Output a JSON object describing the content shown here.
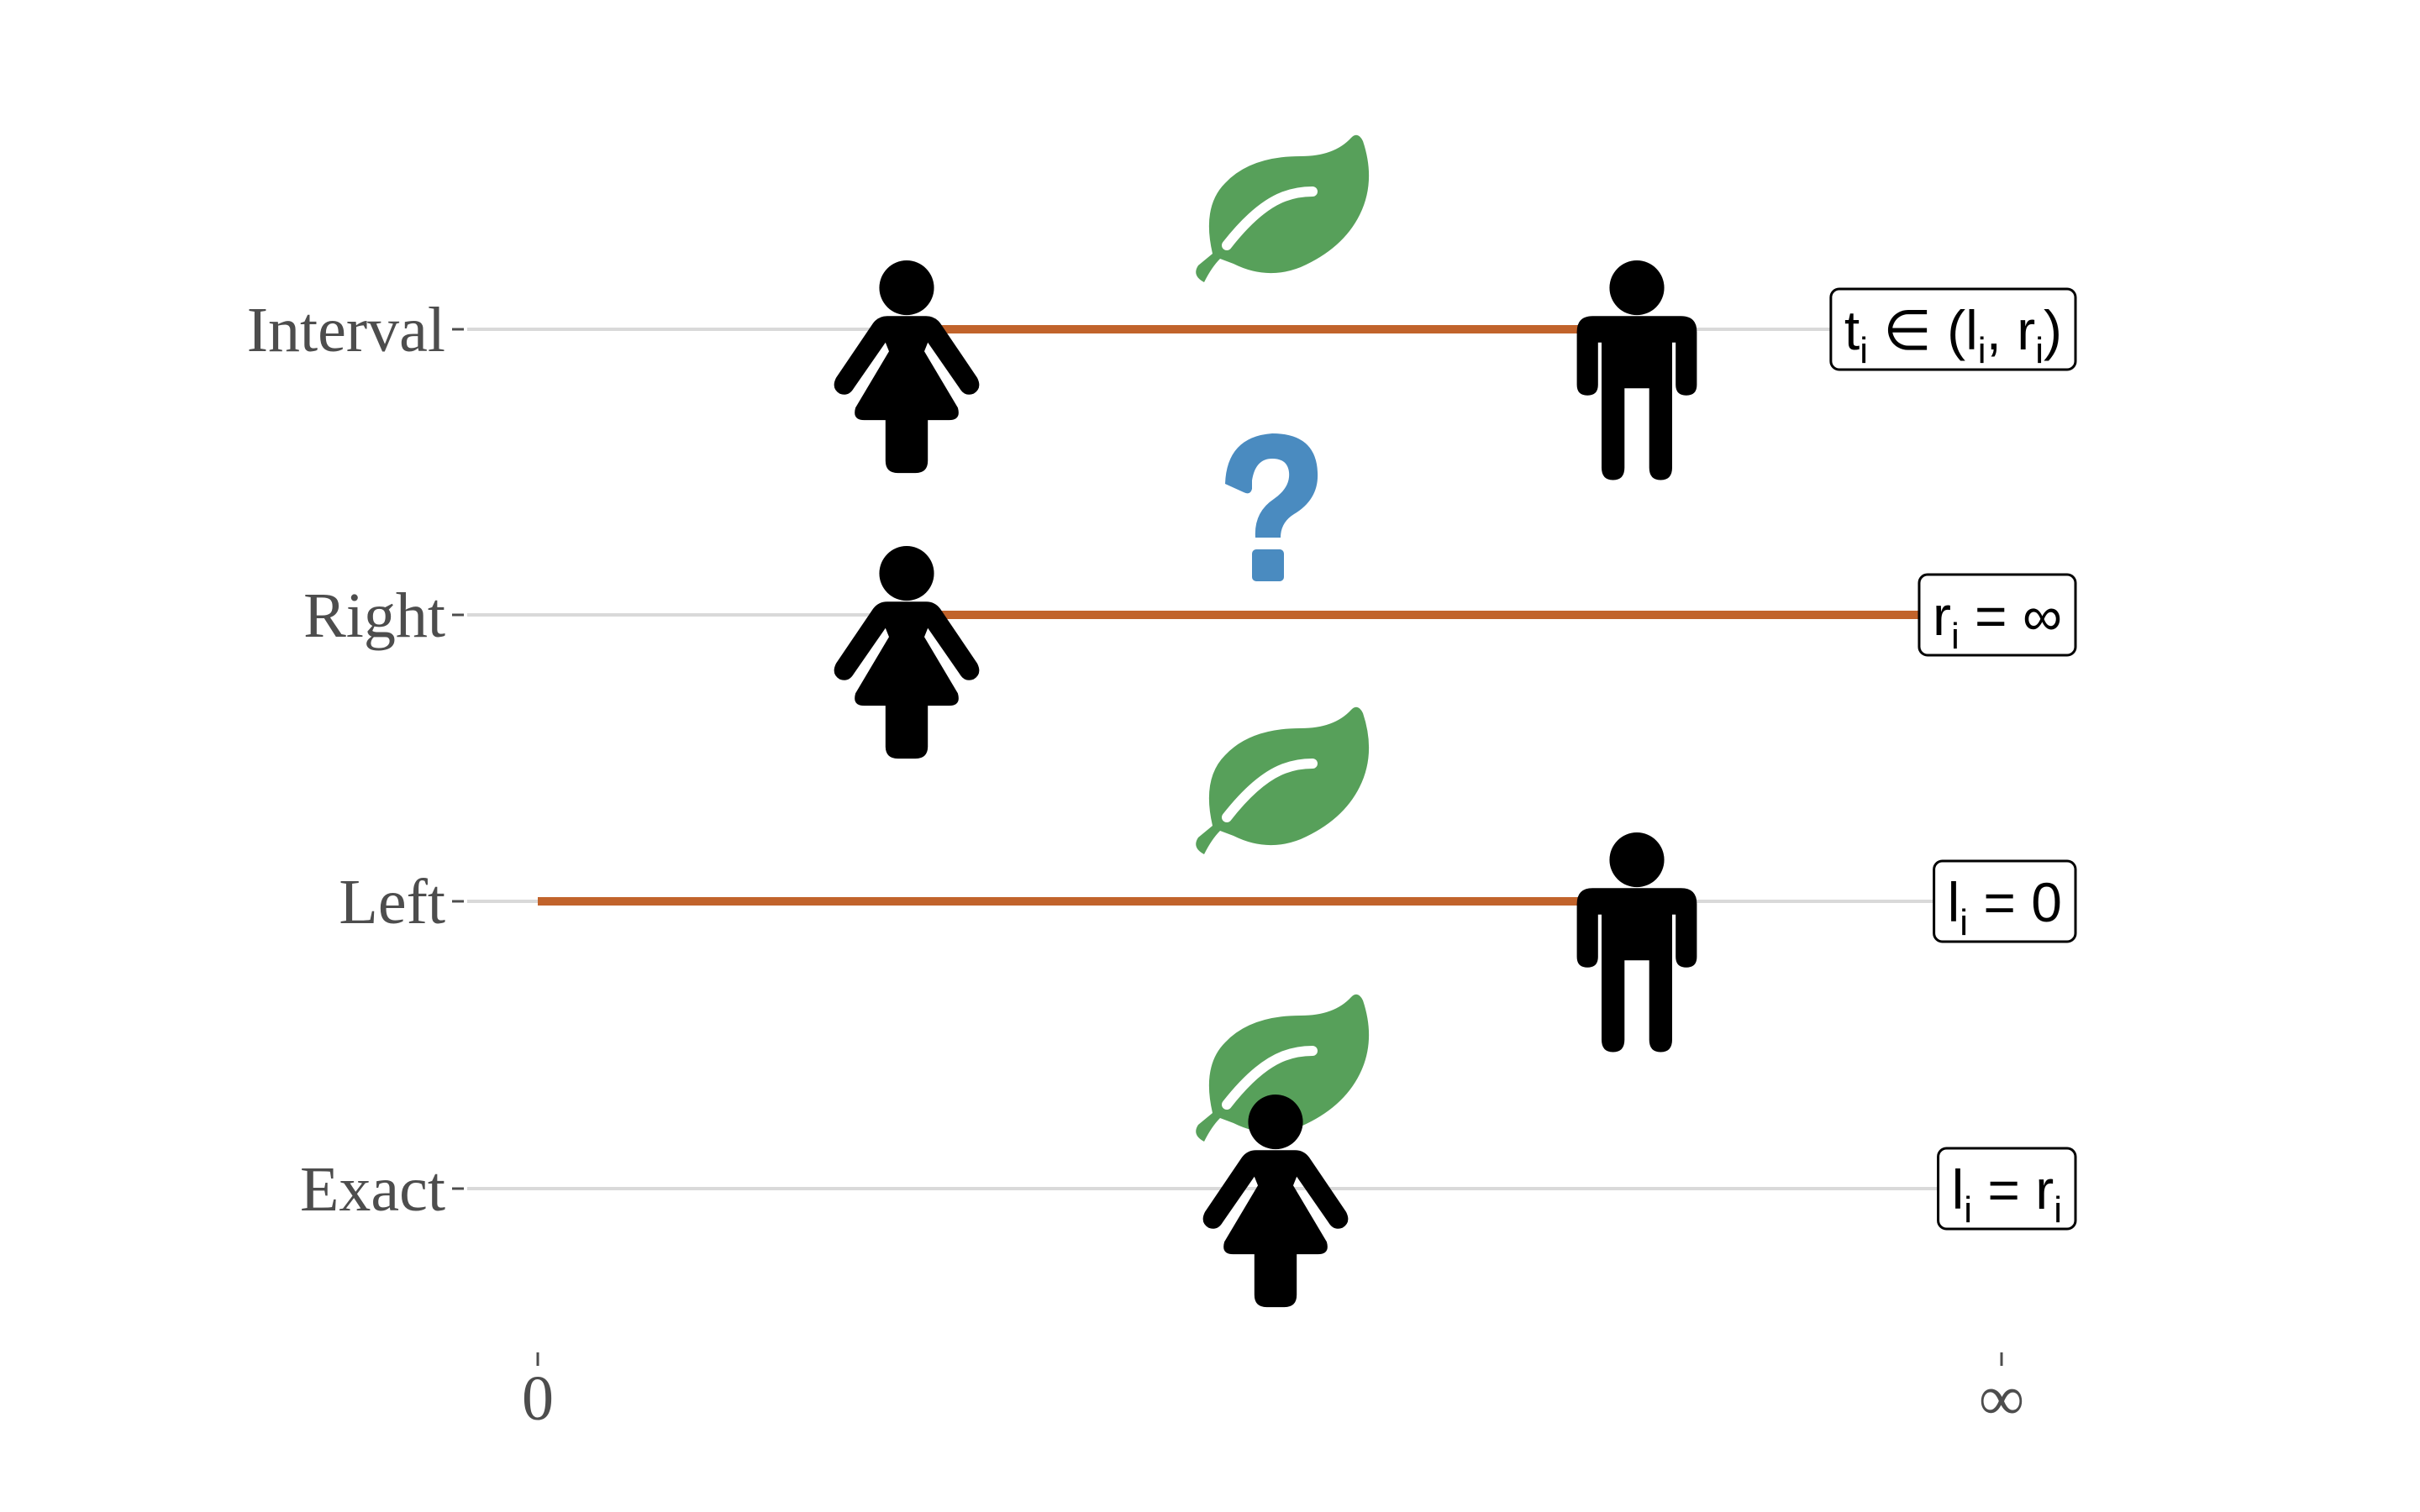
{
  "rows": [
    {
      "label": "Interval",
      "formula": {
        "main": [
          "t",
          " ∈ (l",
          ", r",
          ")"
        ],
        "sub": [
          "i",
          "i",
          "i"
        ]
      },
      "start": "woman",
      "end": "man",
      "marker": "leaf-icon"
    },
    {
      "label": "Right",
      "formula": {
        "main": [
          "r",
          " = ∞"
        ],
        "sub": [
          "i"
        ]
      },
      "start": "woman",
      "end": "infinity",
      "marker": "question-icon"
    },
    {
      "label": "Left",
      "formula": {
        "main": [
          "l",
          " = 0"
        ],
        "sub": [
          "i"
        ]
      },
      "start": "zero",
      "end": "man",
      "marker": "leaf-icon"
    },
    {
      "label": "Exact",
      "formula": {
        "main": [
          "l",
          " = r"
        ],
        "sub": [
          "i",
          "i"
        ]
      },
      "start": "woman",
      "end": "woman",
      "marker": "leaf-icon"
    }
  ],
  "axis": {
    "ticks": [
      "0",
      "∞"
    ]
  },
  "colors": {
    "interval_line": "#c1632b",
    "guide_line": "#d9d9d9",
    "leaf": "#57a05a",
    "question": "#4a8bc0",
    "person": "#000000",
    "text": "#4d4d4d"
  }
}
